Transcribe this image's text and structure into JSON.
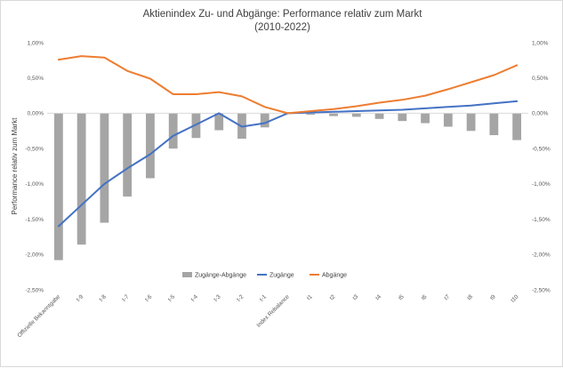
{
  "chart_data": {
    "type": "bar",
    "title": "Aktienindex Zu- und Abgänge: Performance relativ zum Markt",
    "subtitle": "(2010-2022)",
    "ylabel": "Performance relativ zum Markt",
    "xlabel": "",
    "ylim": [
      -2.5,
      1.0
    ],
    "y_ticks": [
      "1,00%",
      "0,50%",
      "0,00%",
      "-0,50%",
      "-1,00%",
      "-1,50%",
      "-2,00%",
      "-2,50%"
    ],
    "y_tick_values": [
      1.0,
      0.5,
      0.0,
      -0.5,
      -1.0,
      -1.5,
      -2.0,
      -2.5
    ],
    "secondary_y_axis": true,
    "grid": false,
    "legend_position": "bottom-center",
    "categories": [
      "Offizielle Bekanntgabe",
      "t-9",
      "t-8",
      "t-7",
      "t-6",
      "t-5",
      "t-4",
      "t-3",
      "t-2",
      "t-1",
      "Index Rebalance",
      "t1",
      "t2",
      "t3",
      "t4",
      "t5",
      "t6",
      "t7",
      "t8",
      "t9",
      "t10"
    ],
    "series": [
      {
        "name": "Zugänge-Abgänge",
        "type": "bar",
        "color": "#a5a5a5",
        "values": [
          -2.08,
          -1.86,
          -1.55,
          -1.18,
          -0.92,
          -0.5,
          -0.35,
          -0.24,
          -0.36,
          -0.2,
          0.0,
          -0.02,
          -0.04,
          -0.05,
          -0.08,
          -0.11,
          -0.14,
          -0.19,
          -0.25,
          -0.31,
          -0.38
        ]
      },
      {
        "name": "Zugänge",
        "type": "line",
        "color": "#4472c4",
        "values": [
          -1.6,
          -1.3,
          -1.0,
          -0.78,
          -0.58,
          -0.32,
          -0.16,
          0.0,
          -0.19,
          -0.14,
          0.0,
          0.01,
          0.02,
          0.03,
          0.04,
          0.05,
          0.07,
          0.09,
          0.11,
          0.14,
          0.17
        ]
      },
      {
        "name": "Abgänge",
        "type": "line",
        "color": "#ed7d31",
        "values": [
          0.76,
          0.81,
          0.79,
          0.6,
          0.49,
          0.27,
          0.27,
          0.3,
          0.24,
          0.09,
          0.0,
          0.03,
          0.06,
          0.1,
          0.15,
          0.19,
          0.25,
          0.34,
          0.44,
          0.54,
          0.68
        ]
      }
    ]
  }
}
